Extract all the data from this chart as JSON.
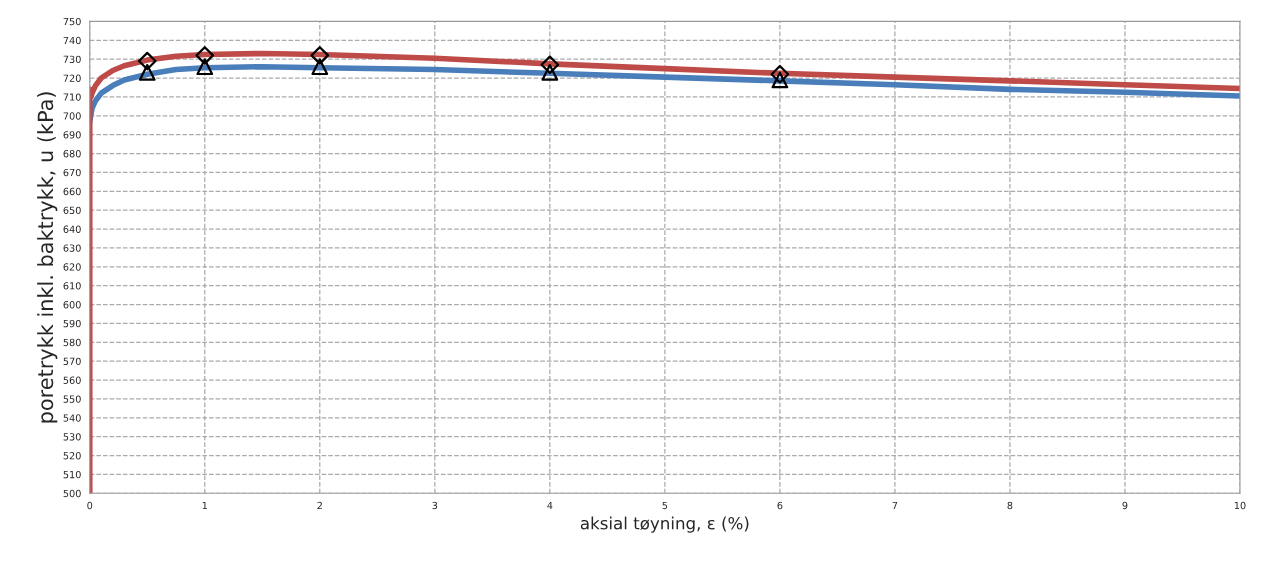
{
  "chart_data": {
    "type": "line",
    "xlabel": "aksial tøyning, ε (%)",
    "ylabel": "poretrykk inkl. baktrykk, u (kPa)",
    "xlim": [
      0,
      10
    ],
    "xticks": [
      0,
      1,
      2,
      3,
      4,
      5,
      6,
      7,
      8,
      9,
      10
    ],
    "ylim": [
      500,
      750
    ],
    "yticks": [
      500,
      510,
      520,
      530,
      540,
      550,
      560,
      570,
      580,
      590,
      600,
      610,
      620,
      630,
      640,
      650,
      660,
      670,
      680,
      690,
      700,
      710,
      720,
      730,
      740,
      750
    ],
    "grid": true,
    "line_style": "solid",
    "series": [
      {
        "color": "#4a7ebb",
        "x": [
          0,
          0.02,
          0.05,
          0.1,
          0.2,
          0.3,
          0.5,
          0.75,
          1,
          1.5,
          2,
          3,
          4,
          5,
          6,
          7,
          8,
          9,
          10
        ],
        "values": [
          697,
          704,
          708,
          712,
          716,
          719,
          722,
          724.5,
          725.5,
          726,
          725.5,
          724.5,
          722.5,
          720.5,
          718.5,
          716.5,
          714,
          712.5,
          710.5
        ]
      },
      {
        "color": "#be4b48",
        "x": [
          0,
          0,
          0.01,
          0.02,
          0.05,
          0.1,
          0.2,
          0.3,
          0.5,
          0.75,
          1,
          1.5,
          2,
          3,
          4,
          5,
          6,
          7,
          8,
          9,
          10
        ],
        "values": [
          500,
          714,
          710,
          712,
          716,
          720,
          724,
          726.5,
          729.5,
          731.5,
          732.5,
          733,
          732.5,
          730.5,
          727.5,
          725,
          722.5,
          720.5,
          718.5,
          716.5,
          714.5
        ]
      },
      {
        "type": "scatter",
        "marker": "triangle",
        "color": "#000000",
        "x": [
          0.5,
          1,
          2,
          4,
          6
        ],
        "values": [
          723,
          726,
          726,
          723,
          719
        ]
      },
      {
        "type": "scatter",
        "marker": "diamond",
        "color": "#000000",
        "x": [
          0.5,
          1,
          2,
          4,
          6
        ],
        "values": [
          729,
          732,
          732,
          727,
          722
        ]
      }
    ]
  }
}
